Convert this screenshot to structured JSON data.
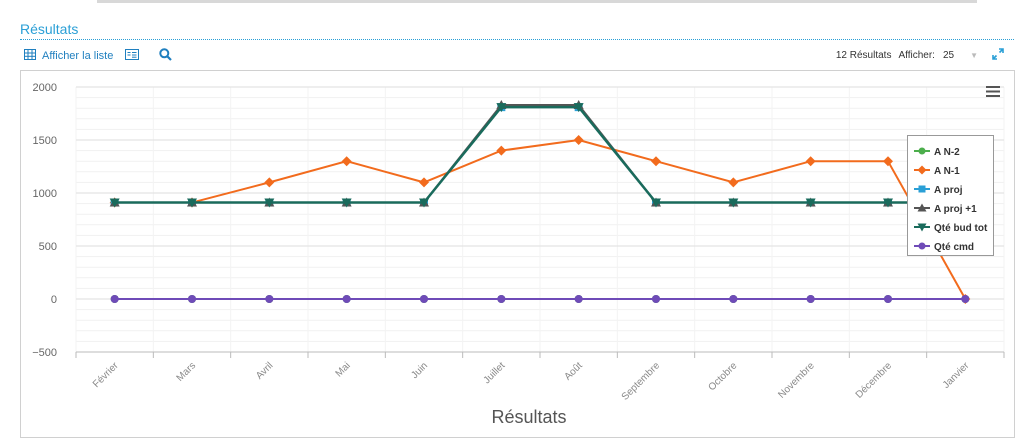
{
  "section": {
    "title": "Résultats"
  },
  "toolbar": {
    "list_label": "Afficher la liste",
    "results_count": "12 Résultats",
    "show_label": "Afficher:",
    "page_size": "25"
  },
  "icons": {
    "list": "grid-list-icon",
    "card": "card-view-icon",
    "search": "search-icon",
    "expand": "expand-icon",
    "menu": "hamburger-menu-icon"
  },
  "chart_data": {
    "type": "line",
    "title": "Résultats",
    "xlabel": "",
    "ylabel": "",
    "categories": [
      "Février",
      "Mars",
      "Avril",
      "Mai",
      "Juin",
      "Juillet",
      "Août",
      "Septembre",
      "Octobre",
      "Novembre",
      "Décembre",
      "Janvier"
    ],
    "ylim": [
      -500,
      2000
    ],
    "yticks": [
      -500,
      0,
      500,
      1000,
      1500,
      2000
    ],
    "legend_position": "right",
    "grid": true,
    "series": [
      {
        "name": "A N-2",
        "color": "#4cae4c",
        "marker": "circle",
        "values": [
          0,
          0,
          0,
          0,
          0,
          0,
          0,
          0,
          0,
          0,
          0,
          0
        ]
      },
      {
        "name": "A N-1",
        "color": "#f26b1d",
        "marker": "diamond",
        "values": [
          910,
          910,
          1100,
          1300,
          1100,
          1400,
          1500,
          1300,
          1100,
          1300,
          1300,
          0
        ]
      },
      {
        "name": "A proj",
        "color": "#2a9fd6",
        "marker": "square",
        "values": [
          910,
          910,
          910,
          910,
          910,
          1810,
          1810,
          910,
          910,
          910,
          910,
          910
        ]
      },
      {
        "name": "A proj +1",
        "color": "#555555",
        "marker": "triangle",
        "values": [
          910,
          910,
          910,
          910,
          910,
          1830,
          1830,
          910,
          910,
          910,
          910,
          910
        ]
      },
      {
        "name": "Qté bud tot",
        "color": "#1a6b5c",
        "marker": "triangle-down",
        "values": [
          910,
          910,
          910,
          910,
          910,
          1810,
          1810,
          910,
          910,
          910,
          910,
          910
        ]
      },
      {
        "name": "Qté cmd",
        "color": "#6f4bb8",
        "marker": "circle",
        "values": [
          0,
          0,
          0,
          0,
          0,
          0,
          0,
          0,
          0,
          0,
          0,
          0
        ]
      }
    ]
  }
}
